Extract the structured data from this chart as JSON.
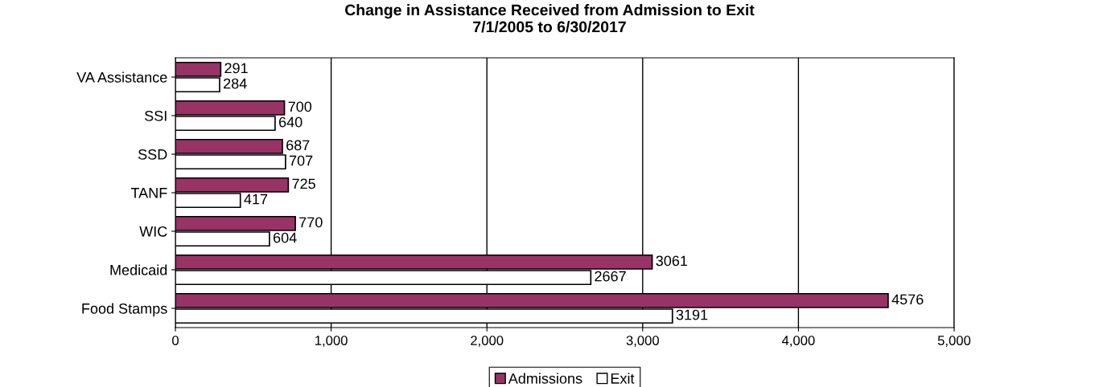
{
  "chart_data": {
    "type": "bar",
    "orientation": "horizontal",
    "title": "Change in Assistance Received from Admission to Exit\n7/1/2005 to 6/30/2017",
    "categories": [
      "VA Assistance",
      "SSI",
      "SSD",
      "TANF",
      "WIC",
      "Medicaid",
      "Food Stamps"
    ],
    "series": [
      {
        "name": "Admissions",
        "color": "#993366",
        "values": [
          291,
          700,
          687,
          725,
          770,
          3061,
          4576
        ]
      },
      {
        "name": "Exit",
        "color": "#ffffff",
        "values": [
          284,
          640,
          707,
          417,
          604,
          2667,
          3191
        ]
      }
    ],
    "xlim": [
      0,
      5000
    ],
    "xticks": [
      0,
      {
        "value": 1000,
        "label": "1,000"
      },
      {
        "value": 2000,
        "label": "2,000"
      },
      {
        "value": 3000,
        "label": "3,000"
      },
      {
        "value": 4000,
        "label": "4,000"
      },
      {
        "value": 5000,
        "label": "5,000"
      }
    ],
    "grid": "x",
    "legend": "bottom",
    "data_labels": true
  }
}
